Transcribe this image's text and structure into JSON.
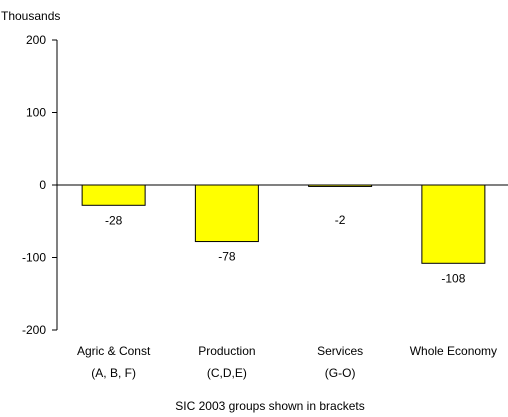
{
  "chart_data": {
    "type": "bar",
    "ylabel": "Thousands",
    "xlabel": "SIC 2003 groups shown in brackets",
    "categories": [
      {
        "name": "Agric & Const",
        "code": "(A, B, F)"
      },
      {
        "name": "Production",
        "code": "(C,D,E)"
      },
      {
        "name": "Services",
        "code": "(G-O)"
      },
      {
        "name": "Whole Economy",
        "code": ""
      }
    ],
    "values": [
      -28,
      -78,
      -2,
      -108
    ],
    "data_labels": [
      "-28",
      "-78",
      "-2",
      "-108"
    ],
    "ylim": [
      -200,
      200
    ],
    "yticks": [
      200,
      100,
      0,
      -100,
      -200
    ],
    "ytick_labels": [
      "200",
      "100",
      "0",
      "-100",
      "-200"
    ],
    "grid": false,
    "bar_color": "#ffff00",
    "bar_edge_color": "#000000"
  }
}
